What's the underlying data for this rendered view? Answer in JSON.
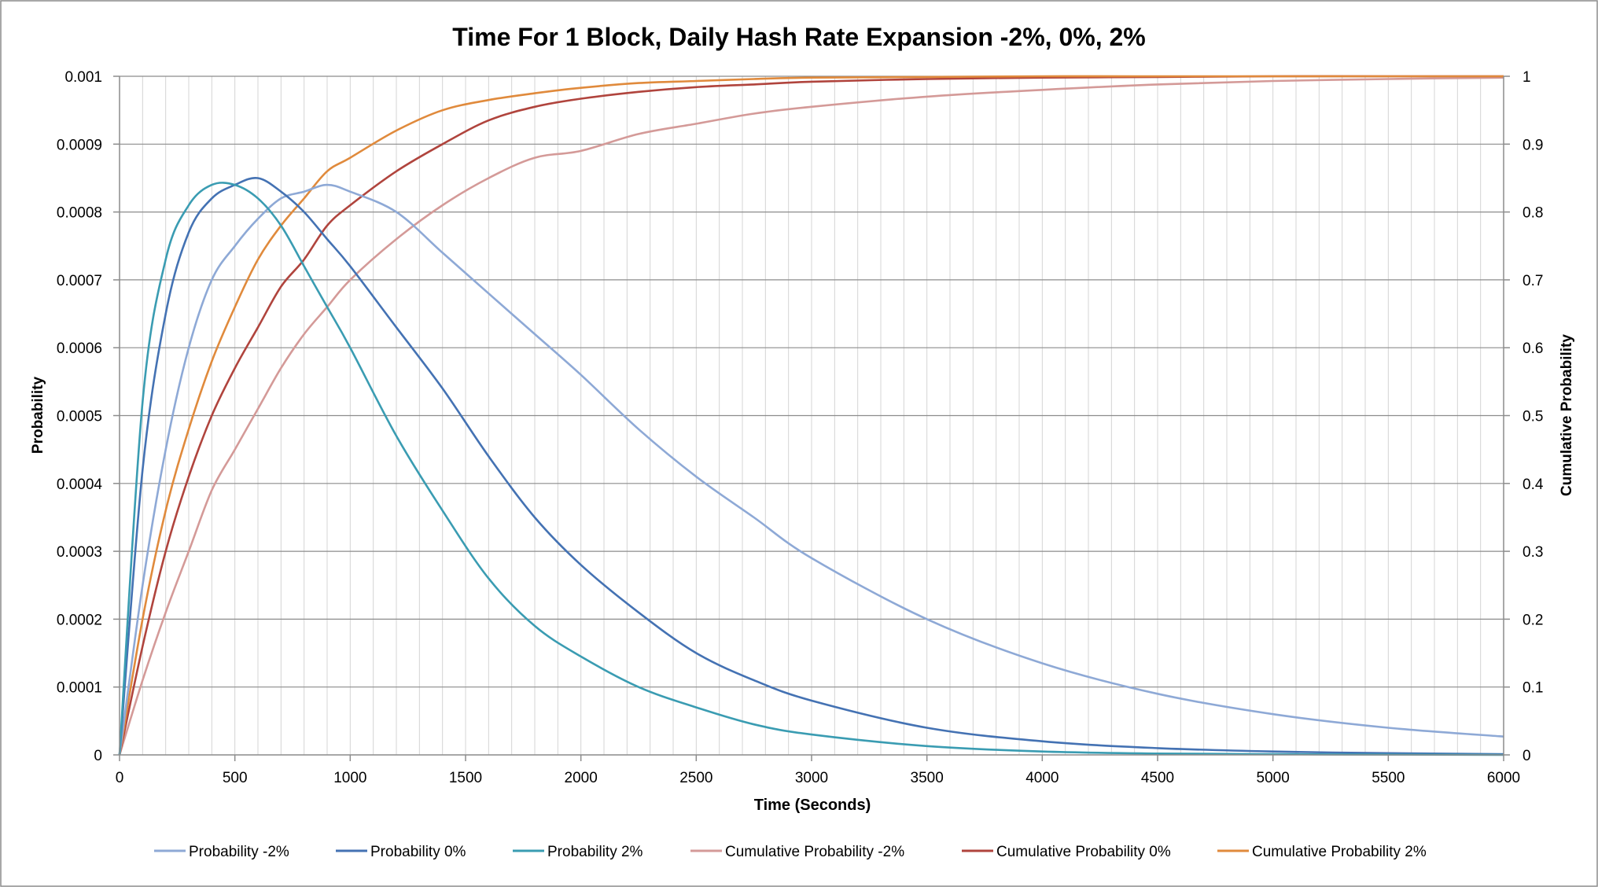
{
  "chart_data": {
    "type": "line",
    "title": "Time For 1 Block, Daily Hash Rate Expansion -2%, 0%, 2%",
    "xlabel": "Time (Seconds)",
    "ylabel": "Probability",
    "y2label": "Cumulative Probability",
    "xlim": [
      0,
      6000
    ],
    "ylim": [
      0,
      0.001
    ],
    "y2lim": [
      0,
      1
    ],
    "x_ticks": [
      "0",
      "500",
      "1000",
      "1500",
      "2000",
      "2500",
      "3000",
      "3500",
      "4000",
      "4500",
      "5000",
      "5500",
      "6000"
    ],
    "y_ticks": [
      "0",
      "0.0001",
      "0.0002",
      "0.0003",
      "0.0004",
      "0.0005",
      "0.0006",
      "0.0007",
      "0.0008",
      "0.0009",
      "0.001"
    ],
    "y2_ticks": [
      "0",
      "0.1",
      "0.2",
      "0.3",
      "0.4",
      "0.5",
      "0.6",
      "0.7",
      "0.8",
      "0.9",
      "1"
    ],
    "grid": true,
    "legend_position": "bottom",
    "x": [
      0,
      100,
      200,
      300,
      400,
      500,
      600,
      700,
      800,
      900,
      1000,
      1200,
      1400,
      1600,
      1800,
      2000,
      2250,
      2500,
      2750,
      3000,
      3500,
      4000,
      4500,
      5000,
      5500,
      6000
    ],
    "series": [
      {
        "name": "Probability -2%",
        "axis": "left",
        "color": "#8EA9D6",
        "values": [
          0,
          0.00025,
          0.00045,
          0.0006,
          0.0007,
          0.00075,
          0.00079,
          0.00082,
          0.00083,
          0.00084,
          0.00083,
          0.0008,
          0.00074,
          0.00068,
          0.00062,
          0.00056,
          0.00048,
          0.00041,
          0.00035,
          0.00029,
          0.0002,
          0.000135,
          9e-05,
          6e-05,
          4e-05,
          2.7e-05
        ]
      },
      {
        "name": "Probability 0%",
        "axis": "left",
        "color": "#4472B3",
        "values": [
          0,
          0.00042,
          0.00065,
          0.00077,
          0.00082,
          0.00084,
          0.00085,
          0.00083,
          0.0008,
          0.00076,
          0.00072,
          0.00063,
          0.00054,
          0.00044,
          0.00035,
          0.00028,
          0.00021,
          0.00015,
          0.00011,
          8e-05,
          4e-05,
          2e-05,
          1e-05,
          5e-06,
          2.5e-06,
          1e-06
        ]
      },
      {
        "name": "Probability 2%",
        "axis": "left",
        "color": "#3A9CB2",
        "values": [
          0,
          0.00052,
          0.00073,
          0.00081,
          0.00084,
          0.00084,
          0.00082,
          0.00078,
          0.00072,
          0.00066,
          0.0006,
          0.00047,
          0.00036,
          0.00026,
          0.00019,
          0.000145,
          0.0001,
          7e-05,
          4.5e-05,
          3e-05,
          1.3e-05,
          5e-06,
          2e-06,
          1e-06,
          5e-07,
          0
        ]
      },
      {
        "name": "Cumulative Probability -2%",
        "axis": "right",
        "color": "#D49A98",
        "values": [
          0,
          0.11,
          0.21,
          0.3,
          0.39,
          0.45,
          0.51,
          0.57,
          0.62,
          0.66,
          0.7,
          0.76,
          0.81,
          0.85,
          0.88,
          0.89,
          0.915,
          0.93,
          0.945,
          0.955,
          0.97,
          0.98,
          0.988,
          0.993,
          0.996,
          0.998
        ]
      },
      {
        "name": "Cumulative Probability 0%",
        "axis": "right",
        "color": "#B0443D",
        "values": [
          0,
          0.16,
          0.3,
          0.41,
          0.5,
          0.57,
          0.63,
          0.69,
          0.73,
          0.78,
          0.81,
          0.86,
          0.9,
          0.935,
          0.955,
          0.967,
          0.977,
          0.984,
          0.988,
          0.992,
          0.996,
          0.998,
          0.999,
          1,
          1,
          1
        ]
      },
      {
        "name": "Cumulative Probability 2%",
        "axis": "right",
        "color": "#E08A3C",
        "values": [
          0,
          0.2,
          0.36,
          0.48,
          0.58,
          0.66,
          0.73,
          0.78,
          0.82,
          0.86,
          0.88,
          0.92,
          0.95,
          0.965,
          0.975,
          0.983,
          0.99,
          0.993,
          0.996,
          0.998,
          0.999,
          1,
          1,
          1,
          1,
          1
        ]
      }
    ]
  }
}
